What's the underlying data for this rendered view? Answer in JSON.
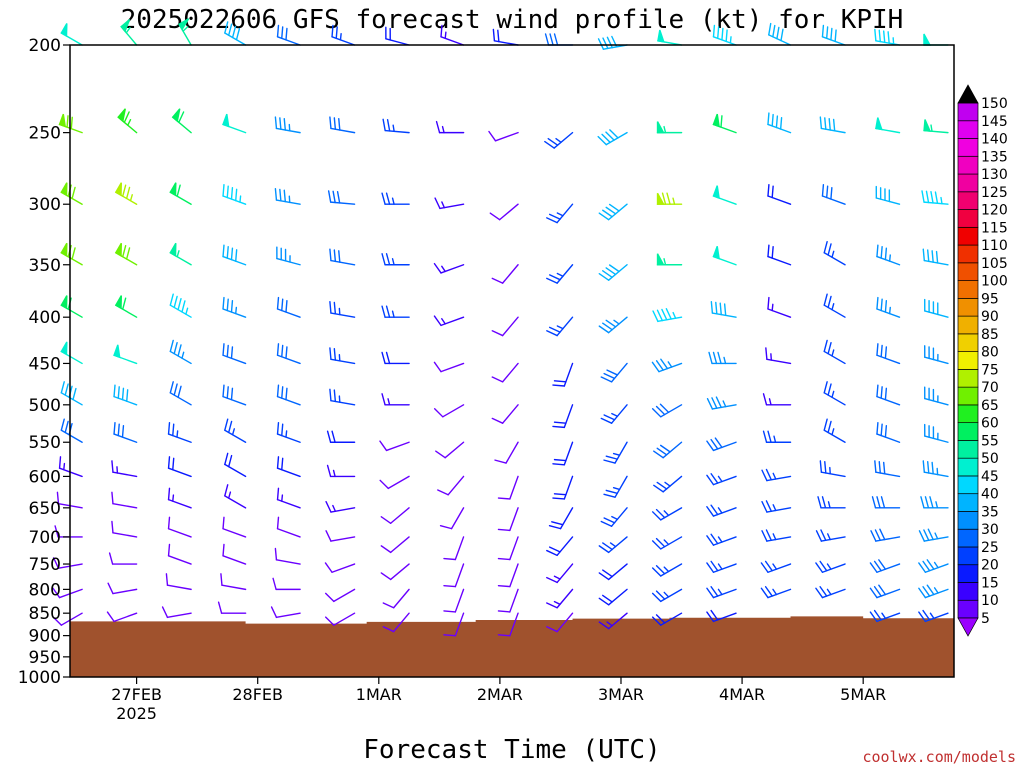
{
  "chart_data": {
    "type": "wind-barb-profile",
    "title": "2025022606 GFS forecast wind profile (kt) for KPIH",
    "xlabel": "Forecast Time (UTC)",
    "credit": "coolwx.com/models",
    "y_ticks": [
      "200",
      "250",
      "300",
      "350",
      "400",
      "450",
      "500",
      "550",
      "600",
      "650",
      "700",
      "750",
      "800",
      "850",
      "900",
      "950",
      "1000"
    ],
    "x_ticks": [
      {
        "label": "27FEB",
        "sub": "2025"
      },
      {
        "label": "28FEB",
        "sub": ""
      },
      {
        "label": "1MAR",
        "sub": ""
      },
      {
        "label": "2MAR",
        "sub": ""
      },
      {
        "label": "3MAR",
        "sub": ""
      },
      {
        "label": "4MAR",
        "sub": ""
      },
      {
        "label": "5MAR",
        "sub": ""
      }
    ],
    "x_range_days": [
      -0.55,
      6.75
    ],
    "colorbar": {
      "levels": [
        5,
        10,
        15,
        20,
        25,
        30,
        35,
        40,
        45,
        50,
        55,
        60,
        65,
        70,
        75,
        80,
        85,
        90,
        95,
        100,
        105,
        110,
        115,
        120,
        125,
        130,
        135,
        140,
        145,
        150
      ],
      "colors": [
        "#9a00ff",
        "#6a00ff",
        "#3a00ff",
        "#0a1aff",
        "#0040ff",
        "#0066ff",
        "#0090ff",
        "#00b4ff",
        "#00d8ff",
        "#00f0d0",
        "#00f0a0",
        "#00f060",
        "#20f020",
        "#70f000",
        "#b0f000",
        "#f0f000",
        "#f0d000",
        "#f0b000",
        "#f09000",
        "#f07000",
        "#f05000",
        "#f03000",
        "#f00000",
        "#f00040",
        "#f00070",
        "#f000a0",
        "#f000c0",
        "#f000e0",
        "#e000f0",
        "#c000f0"
      ]
    },
    "ground_color": "#a0522d",
    "surface_pressure_steps": [
      {
        "t": 0.0,
        "p": 868
      },
      {
        "t": 0.9,
        "p": 873
      },
      {
        "t": 1.9,
        "p": 869
      },
      {
        "t": 2.8,
        "p": 865
      },
      {
        "t": 3.6,
        "p": 862
      },
      {
        "t": 4.4,
        "p": 860
      },
      {
        "t": 5.4,
        "p": 857
      },
      {
        "t": 6.0,
        "p": 861
      }
    ],
    "profiles": {
      "levels": [
        200,
        250,
        300,
        350,
        400,
        450,
        500,
        550,
        600,
        650,
        700,
        750,
        800,
        850
      ],
      "times": [
        -0.45,
        0.0,
        0.45,
        0.9,
        1.35,
        1.8,
        2.25,
        2.7,
        3.15,
        3.6,
        4.05,
        4.5,
        4.95,
        5.4,
        5.85,
        6.3,
        6.7
      ],
      "dir": [
        [
          300,
          320,
          330,
          300,
          290,
          290,
          285,
          290,
          280,
          270,
          260,
          280,
          290,
          295,
          290,
          280,
          270
        ],
        [
          290,
          310,
          310,
          290,
          280,
          280,
          275,
          270,
          250,
          230,
          240,
          270,
          290,
          290,
          280,
          280,
          275
        ],
        [
          300,
          300,
          300,
          290,
          280,
          275,
          270,
          260,
          230,
          220,
          230,
          270,
          290,
          290,
          290,
          285,
          275
        ],
        [
          300,
          300,
          300,
          290,
          285,
          280,
          270,
          250,
          220,
          220,
          230,
          270,
          290,
          290,
          300,
          290,
          280
        ],
        [
          300,
          300,
          300,
          290,
          290,
          280,
          270,
          250,
          220,
          220,
          230,
          260,
          280,
          290,
          300,
          290,
          285
        ],
        [
          300,
          290,
          300,
          290,
          290,
          280,
          270,
          250,
          220,
          200,
          220,
          250,
          270,
          280,
          300,
          290,
          285
        ],
        [
          300,
          290,
          300,
          290,
          290,
          280,
          270,
          240,
          220,
          200,
          220,
          240,
          260,
          270,
          300,
          290,
          285
        ],
        [
          300,
          290,
          290,
          300,
          290,
          270,
          250,
          230,
          210,
          200,
          210,
          230,
          250,
          270,
          300,
          290,
          285
        ],
        [
          290,
          280,
          290,
          300,
          290,
          270,
          240,
          220,
          200,
          200,
          210,
          230,
          250,
          260,
          280,
          280,
          280
        ],
        [
          280,
          280,
          290,
          300,
          290,
          260,
          230,
          210,
          200,
          210,
          220,
          240,
          250,
          260,
          270,
          270,
          270
        ],
        [
          270,
          280,
          290,
          290,
          290,
          260,
          230,
          200,
          200,
          220,
          230,
          240,
          250,
          260,
          260,
          260,
          260
        ],
        [
          260,
          270,
          290,
          290,
          280,
          250,
          230,
          200,
          200,
          220,
          230,
          240,
          250,
          250,
          250,
          250,
          250
        ],
        [
          250,
          260,
          280,
          280,
          270,
          240,
          220,
          200,
          200,
          220,
          230,
          240,
          250,
          250,
          250,
          250,
          250
        ],
        [
          240,
          250,
          260,
          270,
          260,
          240,
          220,
          200,
          200,
          220,
          230,
          240,
          250,
          250,
          250,
          250,
          250
        ]
      ],
      "spd": [
        [
          50,
          55,
          55,
          40,
          30,
          25,
          20,
          15,
          20,
          30,
          40,
          50,
          45,
          40,
          40,
          45,
          50
        ],
        [
          70,
          65,
          60,
          50,
          35,
          30,
          25,
          15,
          10,
          25,
          40,
          55,
          60,
          40,
          40,
          50,
          55
        ],
        [
          70,
          75,
          60,
          45,
          35,
          30,
          25,
          15,
          10,
          25,
          40,
          75,
          50,
          20,
          30,
          40,
          45
        ],
        [
          70,
          70,
          55,
          40,
          35,
          30,
          25,
          15,
          10,
          25,
          40,
          55,
          50,
          20,
          25,
          35,
          40
        ],
        [
          60,
          60,
          45,
          35,
          30,
          25,
          25,
          15,
          10,
          25,
          35,
          45,
          40,
          15,
          25,
          35,
          40
        ],
        [
          50,
          50,
          35,
          30,
          30,
          25,
          20,
          10,
          10,
          20,
          30,
          35,
          35,
          15,
          25,
          30,
          35
        ],
        [
          40,
          40,
          30,
          30,
          30,
          25,
          15,
          10,
          10,
          20,
          25,
          30,
          35,
          15,
          25,
          30,
          35
        ],
        [
          30,
          30,
          25,
          25,
          25,
          20,
          10,
          10,
          10,
          20,
          25,
          30,
          30,
          25,
          25,
          30,
          35
        ],
        [
          15,
          15,
          20,
          20,
          20,
          15,
          10,
          10,
          10,
          20,
          25,
          25,
          25,
          25,
          25,
          30,
          35
        ],
        [
          10,
          10,
          15,
          15,
          15,
          15,
          10,
          10,
          10,
          20,
          25,
          25,
          25,
          25,
          25,
          30,
          35
        ],
        [
          10,
          10,
          10,
          10,
          10,
          10,
          10,
          10,
          10,
          20,
          25,
          25,
          25,
          25,
          25,
          30,
          35
        ],
        [
          10,
          10,
          10,
          10,
          10,
          10,
          10,
          10,
          10,
          15,
          20,
          25,
          25,
          25,
          25,
          30,
          35
        ],
        [
          10,
          10,
          10,
          10,
          10,
          10,
          10,
          10,
          10,
          15,
          20,
          25,
          25,
          25,
          25,
          30,
          35
        ],
        [
          10,
          10,
          10,
          10,
          10,
          10,
          10,
          10,
          10,
          10,
          15,
          20,
          20,
          20,
          20,
          25,
          25
        ]
      ]
    }
  }
}
